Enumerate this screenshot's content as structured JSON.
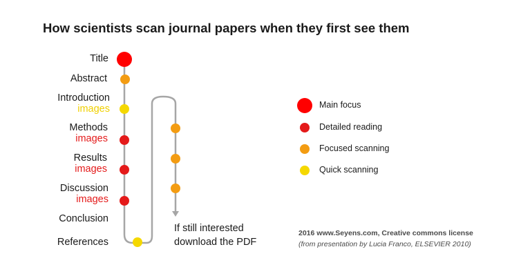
{
  "title": "How scientists scan journal papers when they first see them",
  "sections": [
    {
      "label": "Title",
      "sub": ""
    },
    {
      "label": "Abstract",
      "sub": ""
    },
    {
      "label": "Introduction",
      "sub": "images"
    },
    {
      "label": "Methods",
      "sub": "images"
    },
    {
      "label": "Results",
      "sub": "images"
    },
    {
      "label": "Discussion",
      "sub": "images"
    },
    {
      "label": "Conclusion",
      "sub": ""
    },
    {
      "label": "References",
      "sub": ""
    }
  ],
  "note": {
    "line1": "If still interested",
    "line2": "download the PDF"
  },
  "legend": [
    {
      "label": "Main focus",
      "level": "main"
    },
    {
      "label": "Detailed reading",
      "level": "detailed"
    },
    {
      "label": "Focused scanning",
      "level": "focused"
    },
    {
      "label": "Quick scanning",
      "level": "quick"
    }
  ],
  "credit": {
    "line1": "2016 www.Seyens.com, Creative commons license",
    "line2": "(from presentation by Lucia Franco, ELSEVIER 2010)"
  },
  "colors": {
    "main": "#ff0000",
    "detailed": "#e41a1a",
    "focused": "#f39c12",
    "quick": "#f5d800",
    "path": "#a6a6a6",
    "sub_red": "#e41a1a",
    "sub_yellow": "#f0d000"
  }
}
